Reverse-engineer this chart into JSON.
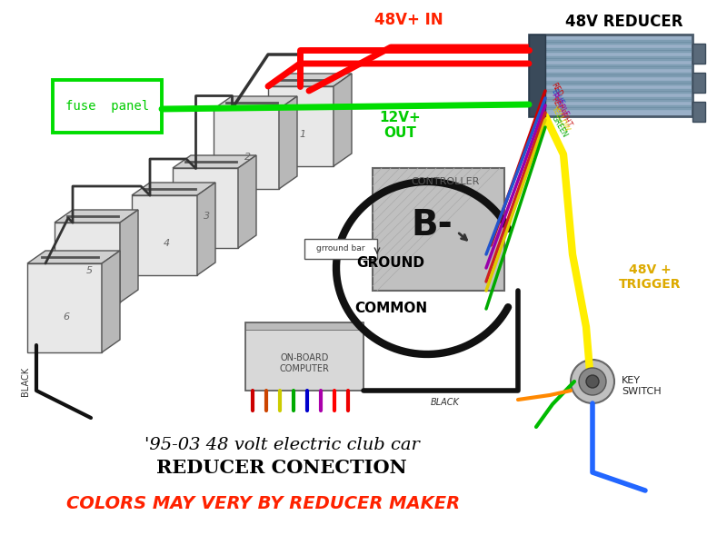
{
  "bg_color": "#ffffff",
  "title1": "'95-03 48 volt electric club car",
  "title2": "REDUCER CONECTION",
  "subtitle": "COLORS MAY VERY BY REDUCER MAKER",
  "subtitle_color": "#ff2200",
  "fuse_panel_label": "fuse  panel",
  "reducer_label": "48V REDUCER",
  "controller_label": "CONTROLLER",
  "b_minus_label": "B-",
  "ground_label": "GROUND",
  "common_label": "COMMON",
  "ground_bar_label": "grround bar",
  "on_board_label": "ON-BOARD\nCOMPUTER",
  "v48_in_label": "48V+ IN",
  "v12_out_label": "12V+\nOUT",
  "v48_trigger_label": "48V +\nTRIGGER",
  "key_switch_label": "KEY\nSWITCH",
  "black_label": "BLACK"
}
